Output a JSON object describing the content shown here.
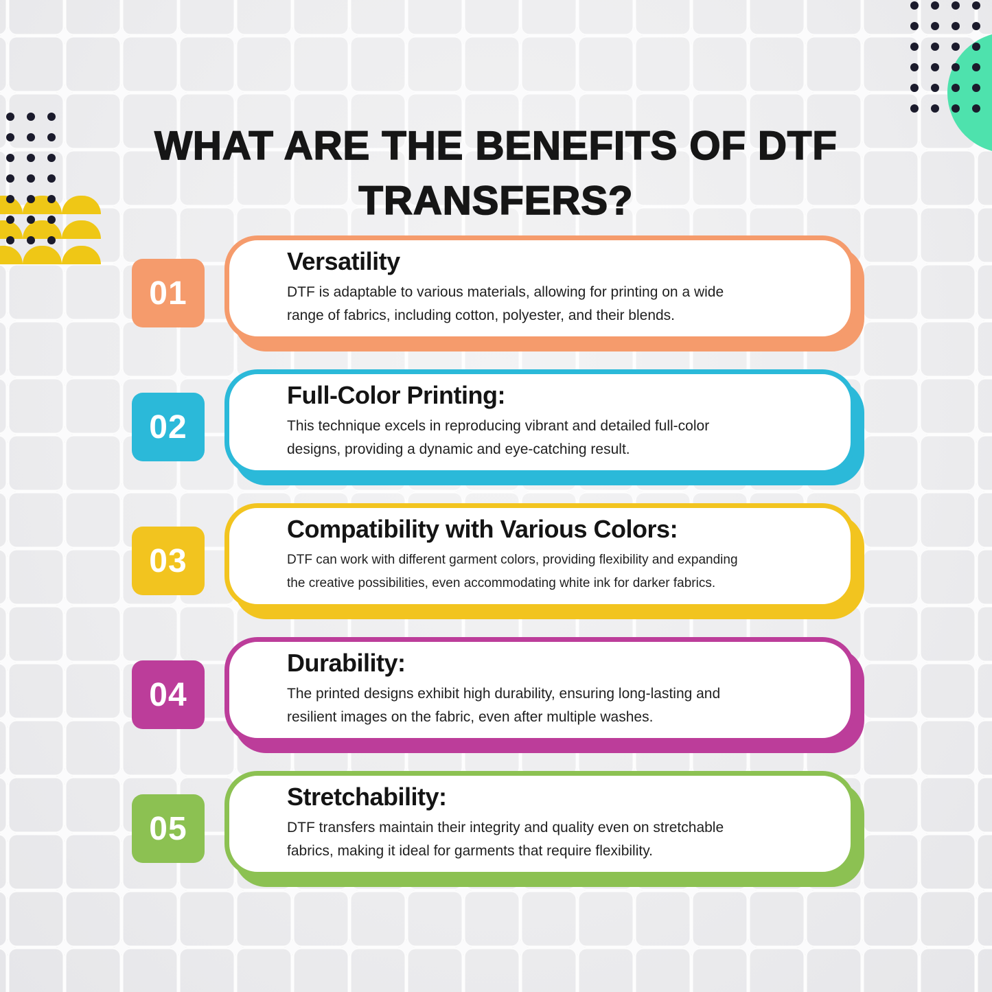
{
  "heading": "WHAT ARE THE BENEFITS OF DTF\nTRANSFERS?",
  "benefits": [
    {
      "number": "01",
      "title": "Versatility",
      "description": "DTF is adaptable to various materials, allowing for printing on a wide\nrange of fabrics, including cotton, polyester, and their blends.",
      "color": "#F59B6C"
    },
    {
      "number": "02",
      "title": "Full-Color Printing:",
      "description": "This technique excels in reproducing vibrant and detailed full-color\ndesigns, providing a dynamic and eye-catching result.",
      "color": "#2BB9D9"
    },
    {
      "number": "03",
      "title": "Compatibility with Various Colors:",
      "description": "DTF can work with different garment colors, providing flexibility and expanding\nthe creative possibilities, even accommodating white ink for darker fabrics.",
      "color": "#F2C41F"
    },
    {
      "number": "04",
      "title": "Durability:",
      "description": "The printed designs exhibit high durability, ensuring long-lasting and\nresilient images on the fabric, even after multiple washes.",
      "color": "#BC3D9A"
    },
    {
      "number": "05",
      "title": "Stretchability:",
      "description": "DTF transfers maintain their integrity and quality even on stretchable\nfabrics, making it ideal for garments that require flexibility.",
      "color": "#8CC152"
    }
  ],
  "decorations": {
    "dot_color": "#1B1B2C",
    "semicircle_color": "#EFC716",
    "circle_color": "#4EE2AD",
    "heading_color": "#161616",
    "background_color": "#EDEDEF"
  }
}
